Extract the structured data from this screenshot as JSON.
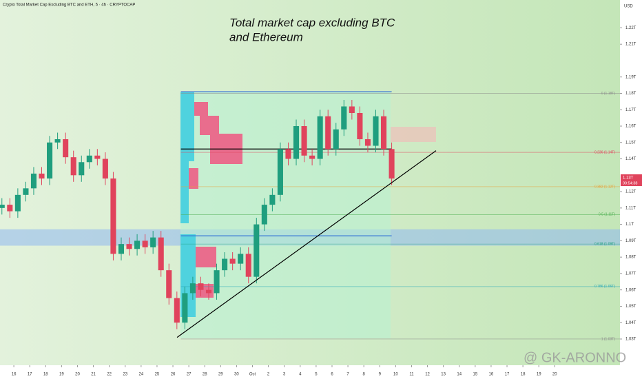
{
  "chart_data": {
    "type": "candlestick",
    "header": "Crypto Total Market Cap Excluding BTC and ETH, 5 · 4h · CRYPTOCAP",
    "title_lines": [
      "Total market cap excluding BTC",
      "and Ethereum"
    ],
    "currency": "USD",
    "price_label": "1.13T",
    "countdown": "00:54:38",
    "watermark": "@ GK-ARONNO",
    "up_color": "#1f9e7e",
    "down_color": "#e0435c",
    "x": [
      -0.75,
      -0.25,
      0.25,
      0.75,
      1.25,
      1.75,
      2.25,
      2.75,
      3.25,
      3.75,
      4.25,
      4.75,
      5.25,
      5.75,
      6.25,
      6.75,
      7.25,
      7.75,
      8.25,
      8.75,
      9.25,
      9.75,
      10.25,
      10.75,
      11.25,
      11.75,
      12.25,
      12.75,
      13.25,
      13.75,
      14.25,
      14.75,
      15.25,
      15.75,
      16.25,
      16.75,
      17.25,
      17.75,
      18.25,
      18.75,
      19.25,
      19.75,
      20.25,
      20.75,
      21.25,
      21.75,
      22.25,
      22.75,
      23.25,
      23.75
    ],
    "open": [
      1.11,
      1.112,
      1.108,
      1.118,
      1.122,
      1.131,
      1.128,
      1.15,
      1.152,
      1.141,
      1.13,
      1.138,
      1.142,
      1.14,
      1.128,
      1.082,
      1.088,
      1.085,
      1.09,
      1.086,
      1.092,
      1.072,
      1.055,
      1.04,
      1.058,
      1.064,
      1.06,
      1.058,
      1.072,
      1.079,
      1.076,
      1.082,
      1.068,
      1.1,
      1.112,
      1.118,
      1.146,
      1.14,
      1.16,
      1.142,
      1.14,
      1.166,
      1.146,
      1.158,
      1.172,
      1.168,
      1.152,
      1.148,
      1.166,
      1.146
    ],
    "high": [
      1.116,
      1.116,
      1.122,
      1.126,
      1.135,
      1.135,
      1.154,
      1.156,
      1.156,
      1.145,
      1.142,
      1.146,
      1.146,
      1.144,
      1.132,
      1.092,
      1.092,
      1.094,
      1.094,
      1.096,
      1.096,
      1.076,
      1.059,
      1.062,
      1.068,
      1.068,
      1.064,
      1.076,
      1.083,
      1.083,
      1.086,
      1.086,
      1.104,
      1.116,
      1.122,
      1.15,
      1.15,
      1.164,
      1.164,
      1.146,
      1.17,
      1.17,
      1.162,
      1.176,
      1.176,
      1.172,
      1.156,
      1.17,
      1.17,
      1.15
    ],
    "low": [
      1.106,
      1.104,
      1.104,
      1.114,
      1.118,
      1.124,
      1.124,
      1.146,
      1.137,
      1.126,
      1.126,
      1.134,
      1.136,
      1.124,
      1.078,
      1.078,
      1.081,
      1.081,
      1.082,
      1.082,
      1.068,
      1.051,
      1.036,
      1.036,
      1.054,
      1.056,
      1.054,
      1.054,
      1.068,
      1.072,
      1.072,
      1.064,
      1.064,
      1.096,
      1.108,
      1.114,
      1.136,
      1.136,
      1.138,
      1.136,
      1.136,
      1.142,
      1.142,
      1.154,
      1.164,
      1.148,
      1.144,
      1.144,
      1.142,
      1.124
    ],
    "close": [
      1.112,
      1.108,
      1.118,
      1.122,
      1.131,
      1.128,
      1.15,
      1.152,
      1.141,
      1.13,
      1.138,
      1.142,
      1.14,
      1.128,
      1.082,
      1.088,
      1.085,
      1.09,
      1.086,
      1.092,
      1.072,
      1.055,
      1.04,
      1.058,
      1.064,
      1.06,
      1.058,
      1.072,
      1.079,
      1.076,
      1.082,
      1.068,
      1.1,
      1.112,
      1.118,
      1.146,
      1.14,
      1.16,
      1.142,
      1.14,
      1.166,
      1.146,
      1.158,
      1.172,
      1.168,
      1.152,
      1.148,
      1.166,
      1.146,
      1.128
    ],
    "xlim": [
      -0.87,
      38.1
    ],
    "ylim": [
      1.014,
      1.237
    ],
    "yticks": [
      {
        "value": 1.22,
        "label": "1.22T"
      },
      {
        "value": 1.21,
        "label": "1.21T"
      },
      {
        "value": 1.19,
        "label": "1.19T"
      },
      {
        "value": 1.18,
        "label": "1.18T"
      },
      {
        "value": 1.17,
        "label": "1.17T"
      },
      {
        "value": 1.16,
        "label": "1.16T"
      },
      {
        "value": 1.15,
        "label": "1.15T"
      },
      {
        "value": 1.14,
        "label": "1.14T"
      },
      {
        "value": 1.12,
        "label": "1.12T"
      },
      {
        "value": 1.11,
        "label": "1.11T"
      },
      {
        "value": 1.1,
        "label": "1.1T"
      },
      {
        "value": 1.09,
        "label": "1.09T"
      },
      {
        "value": 1.08,
        "label": "1.08T"
      },
      {
        "value": 1.07,
        "label": "1.07T"
      },
      {
        "value": 1.06,
        "label": "1.06T"
      },
      {
        "value": 1.05,
        "label": "1.05T"
      },
      {
        "value": 1.04,
        "label": "1.04T"
      },
      {
        "value": 1.03,
        "label": "1.03T"
      }
    ],
    "xticks": [
      {
        "value": 0,
        "label": "16"
      },
      {
        "value": 1,
        "label": "17"
      },
      {
        "value": 2,
        "label": "18"
      },
      {
        "value": 3,
        "label": "19"
      },
      {
        "value": 4,
        "label": "20"
      },
      {
        "value": 5,
        "label": "21"
      },
      {
        "value": 6,
        "label": "22"
      },
      {
        "value": 7,
        "label": "23"
      },
      {
        "value": 8,
        "label": "24"
      },
      {
        "value": 9,
        "label": "25"
      },
      {
        "value": 10,
        "label": "26"
      },
      {
        "value": 11,
        "label": "27"
      },
      {
        "value": 12,
        "label": "28"
      },
      {
        "value": 13,
        "label": "29"
      },
      {
        "value": 14,
        "label": "30"
      },
      {
        "value": 15,
        "label": "Oct"
      },
      {
        "value": 16,
        "label": "2"
      },
      {
        "value": 17,
        "label": "3"
      },
      {
        "value": 18,
        "label": "4"
      },
      {
        "value": 19,
        "label": "5"
      },
      {
        "value": 20,
        "label": "6"
      },
      {
        "value": 21,
        "label": "7"
      },
      {
        "value": 22,
        "label": "8"
      },
      {
        "value": 23,
        "label": "9"
      },
      {
        "value": 24,
        "label": "10"
      },
      {
        "value": 25,
        "label": "11"
      },
      {
        "value": 26,
        "label": "12"
      },
      {
        "value": 27,
        "label": "13"
      },
      {
        "value": 28,
        "label": "14"
      },
      {
        "value": 29,
        "label": "15"
      },
      {
        "value": 30,
        "label": "16"
      },
      {
        "value": 31,
        "label": "17"
      },
      {
        "value": 32,
        "label": "18"
      },
      {
        "value": 33,
        "label": "19"
      },
      {
        "value": 34,
        "label": "20"
      }
    ],
    "fib_levels": [
      {
        "value": 1.18,
        "label": "0 (1.18T)",
        "color": "#8a8a8a"
      },
      {
        "value": 1.144,
        "label": "0.236 (1.14T)",
        "color": "#e0435c"
      },
      {
        "value": 1.123,
        "label": "0.382 (1.12T)",
        "color": "#e8a23a"
      },
      {
        "value": 1.106,
        "label": "0.5 (1.11T)",
        "color": "#4caf50"
      },
      {
        "value": 1.088,
        "label": "0.618 (1.09T)",
        "color": "#1f9e7e"
      },
      {
        "value": 1.062,
        "label": "0.786 (1.06T)",
        "color": "#26a6b8"
      },
      {
        "value": 1.03,
        "label": "1 (1.03T)",
        "color": "#8a8a8a"
      }
    ],
    "fib_x": [
      10.5,
      38.1
    ],
    "zone": [
      1.087,
      1.097
    ],
    "levels": [
      {
        "value": 1.181,
        "color": "#2f6fd6"
      },
      {
        "value": 1.146,
        "color": "#000000"
      },
      {
        "value": 1.093,
        "color": "#2f6fd6"
      }
    ],
    "levels_x": [
      10.5,
      23.75
    ],
    "trendline": {
      "x": [
        10.26,
        26.54
      ],
      "y": [
        1.031,
        1.145
      ],
      "color": "#000000"
    }
  }
}
